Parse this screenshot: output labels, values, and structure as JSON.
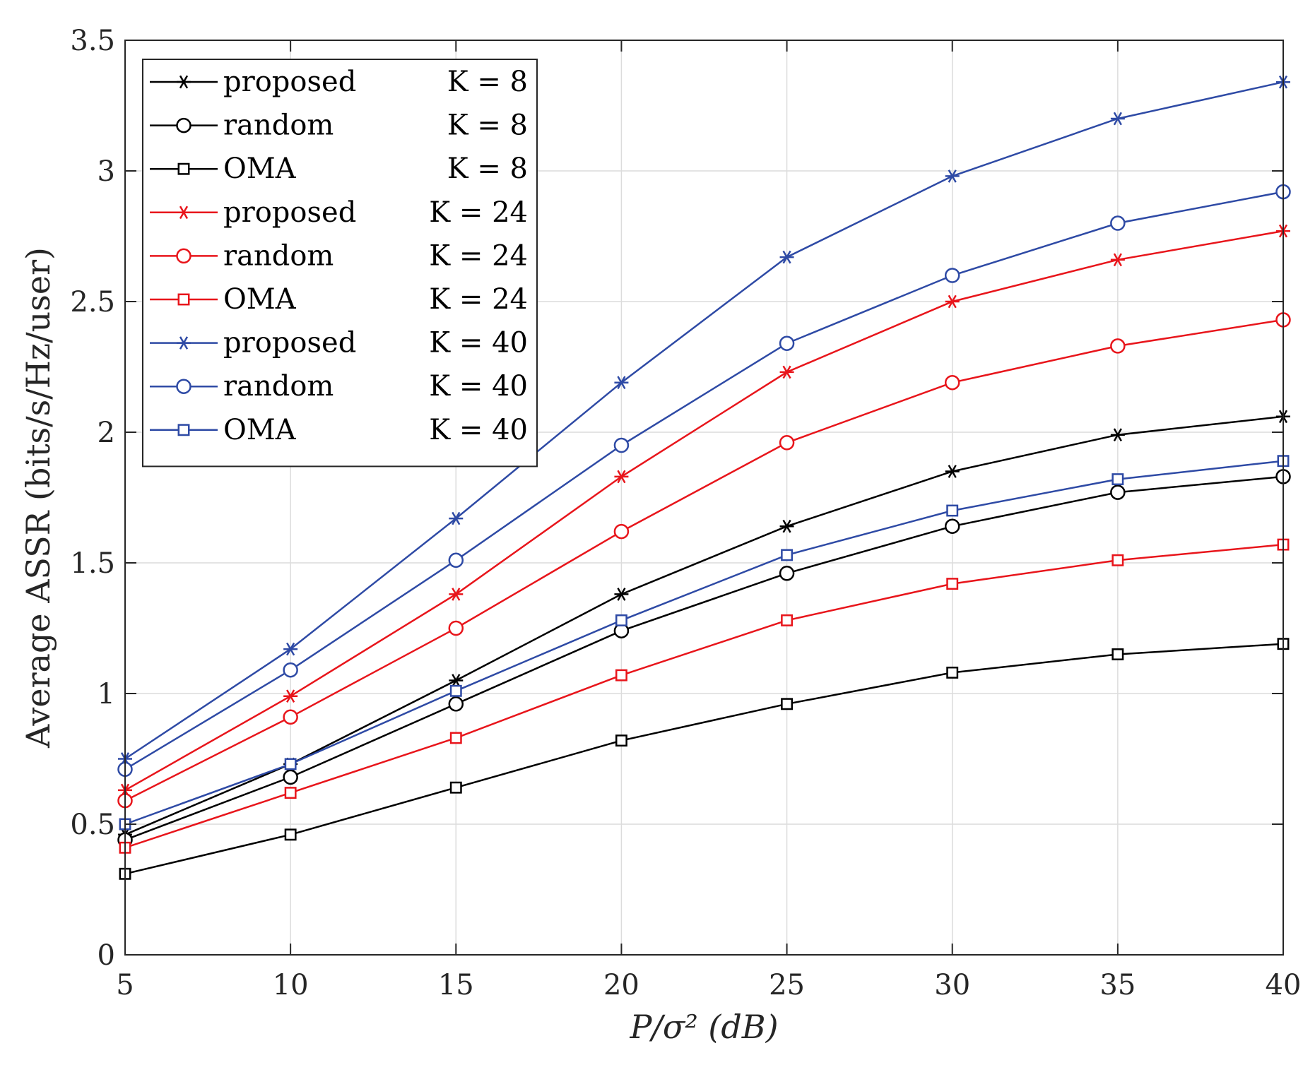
{
  "chart_data": {
    "type": "line",
    "title": "",
    "xlabel": "P/σ² (dB)",
    "ylabel": "Average ASSR (bits/s/Hz/user)",
    "x": [
      5,
      10,
      15,
      20,
      25,
      30,
      35,
      40
    ],
    "xlim": [
      5,
      40
    ],
    "ylim": [
      0,
      3.5
    ],
    "xticks": [
      "5",
      "10",
      "15",
      "20",
      "25",
      "30",
      "35",
      "40"
    ],
    "yticks": [
      "0",
      "0.5",
      "1",
      "1.5",
      "2",
      "2.5",
      "3",
      "3.5"
    ],
    "grid": true,
    "legend_position": "top-left",
    "series": [
      {
        "name": "proposed",
        "k_label": "K = 8",
        "color": "#000000",
        "marker": "star",
        "values": [
          0.46,
          0.73,
          1.05,
          1.38,
          1.64,
          1.85,
          1.99,
          2.06
        ]
      },
      {
        "name": "random",
        "k_label": "K = 8",
        "color": "#000000",
        "marker": "circle",
        "values": [
          0.44,
          0.68,
          0.96,
          1.24,
          1.46,
          1.64,
          1.77,
          1.83
        ]
      },
      {
        "name": "OMA",
        "k_label": "K = 8",
        "color": "#000000",
        "marker": "square",
        "values": [
          0.31,
          0.46,
          0.64,
          0.82,
          0.96,
          1.08,
          1.15,
          1.19
        ]
      },
      {
        "name": "proposed",
        "k_label": "K = 24",
        "color": "#e8151b",
        "marker": "star",
        "values": [
          0.63,
          0.99,
          1.38,
          1.83,
          2.23,
          2.5,
          2.66,
          2.77
        ]
      },
      {
        "name": "random",
        "k_label": "K = 24",
        "color": "#e8151b",
        "marker": "circle",
        "values": [
          0.59,
          0.91,
          1.25,
          1.62,
          1.96,
          2.19,
          2.33,
          2.43
        ]
      },
      {
        "name": "OMA",
        "k_label": "K = 24",
        "color": "#e8151b",
        "marker": "square",
        "values": [
          0.41,
          0.62,
          0.83,
          1.07,
          1.28,
          1.42,
          1.51,
          1.57
        ]
      },
      {
        "name": "proposed",
        "k_label": "K = 40",
        "color": "#2e4aa5",
        "marker": "star",
        "values": [
          0.75,
          1.17,
          1.67,
          2.19,
          2.67,
          2.98,
          3.2,
          3.34
        ]
      },
      {
        "name": "random",
        "k_label": "K = 40",
        "color": "#2e4aa5",
        "marker": "circle",
        "values": [
          0.71,
          1.09,
          1.51,
          1.95,
          2.34,
          2.6,
          2.8,
          2.92
        ]
      },
      {
        "name": "OMA",
        "k_label": "K = 40",
        "color": "#2e4aa5",
        "marker": "square",
        "values": [
          0.5,
          0.73,
          1.01,
          1.28,
          1.53,
          1.7,
          1.82,
          1.89
        ]
      }
    ]
  }
}
